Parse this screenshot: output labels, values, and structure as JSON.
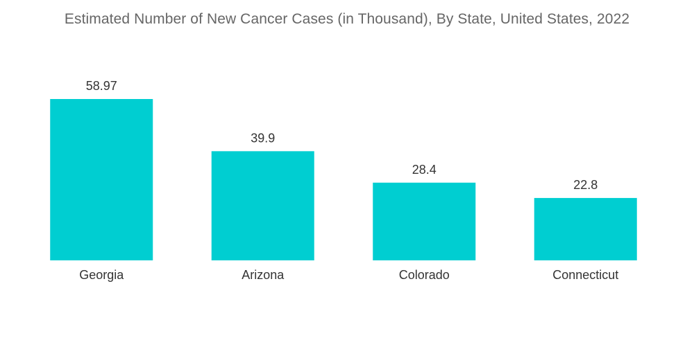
{
  "chart_data": {
    "type": "bar",
    "title": "Estimated Number of New Cancer Cases (in Thousand), By State, United States, 2022",
    "categories": [
      "Georgia",
      "Arizona",
      "Colorado",
      "Connecticut"
    ],
    "values": [
      58.97,
      39.9,
      28.4,
      22.8
    ],
    "value_labels": [
      "58.97",
      "39.9",
      "28.4",
      "22.8"
    ],
    "xlabel": "",
    "ylabel": "",
    "ylim": [
      0,
      58.97
    ],
    "grid": false,
    "legend": "none",
    "bar_color": "#00ced1"
  }
}
